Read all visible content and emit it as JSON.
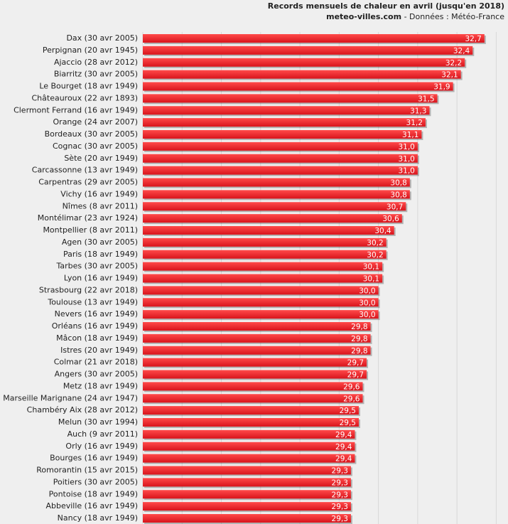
{
  "chart_data": {
    "type": "barh",
    "title": "Records mensuels de chaleur en avril (jusqu'en 2018)",
    "source": "meteo-villes.com",
    "credit": "- Données : Météo-France",
    "categories": [
      "Dax (30 avr 2005)",
      "Perpignan (20 avr 1945)",
      "Ajaccio (28 avr 2012)",
      "Biarritz (30 avr 2005)",
      "Le Bourget (18 avr 1949)",
      "Châteauroux (22 avr 1893)",
      "Clermont Ferrand (16 avr 1949)",
      "Orange (24 avr 2007)",
      "Bordeaux (30 avr 2005)",
      "Cognac (30 avr 2005)",
      "Sète (20 avr 1949)",
      "Carcassonne (13 avr 1949)",
      "Carpentras (29 avr 2005)",
      "Vichy (16 avr 1949)",
      "Nîmes (8 avr 2011)",
      "Montélimar (23 avr 1924)",
      "Montpellier (8 avr 2011)",
      "Agen (30 avr 2005)",
      "Paris (18 avr 1949)",
      "Tarbes (30 avr 2005)",
      "Lyon (16 avr 1949)",
      "Strasbourg (22 avr 2018)",
      "Toulouse (13 avr 1949)",
      "Nevers (16 avr 1949)",
      "Orléans (16 avr 1949)",
      "Mâcon (18 avr 1949)",
      "Istres (20 avr 1949)",
      "Colmar (21 avr 2018)",
      "Angers (30 avr 2005)",
      "Metz (18 avr 1949)",
      "Marseille Marignane (24 avr 1947)",
      "Chambéry Aix (28 avr 2012)",
      "Melun (30 avr 1994)",
      "Auch (9 avr 2011)",
      "Orly (16 avr 1949)",
      "Bourges (16 avr 1949)",
      "Romorantin (15 avr 2015)",
      "Poitiers (30 avr 2005)",
      "Pontoise (18 avr 1949)",
      "Abbeville (16 avr 1949)",
      "Nancy (18 avr 1949)"
    ],
    "values": [
      32.7,
      32.4,
      32.2,
      32.1,
      31.9,
      31.5,
      31.3,
      31.2,
      31.1,
      31.0,
      31.0,
      31.0,
      30.8,
      30.8,
      30.7,
      30.6,
      30.4,
      30.2,
      30.2,
      30.1,
      30.1,
      30.0,
      30.0,
      30.0,
      29.8,
      29.8,
      29.8,
      29.7,
      29.7,
      29.6,
      29.6,
      29.5,
      29.5,
      29.4,
      29.4,
      29.4,
      29.3,
      29.3,
      29.3,
      29.3,
      29.3
    ],
    "value_labels": [
      "32,7",
      "32,4",
      "32,2",
      "32,1",
      "31,9",
      "31,5",
      "31,3",
      "31,2",
      "31,1",
      "31,0",
      "31,0",
      "31,0",
      "30,8",
      "30,8",
      "30,7",
      "30,6",
      "30,4",
      "30,2",
      "30,2",
      "30,1",
      "30,1",
      "30,0",
      "30,0",
      "30,0",
      "29,8",
      "29,8",
      "29,8",
      "29,7",
      "29,7",
      "29,6",
      "29,6",
      "29,5",
      "29,5",
      "29,4",
      "29,4",
      "29,4",
      "29,3",
      "29,3",
      "29,3",
      "29,3",
      "29,3"
    ],
    "color": "#e8202a",
    "xlim": [
      24,
      33.3
    ],
    "xticks": [
      24,
      25,
      26,
      27,
      28,
      29,
      30,
      31,
      32,
      33
    ],
    "grid": true
  }
}
